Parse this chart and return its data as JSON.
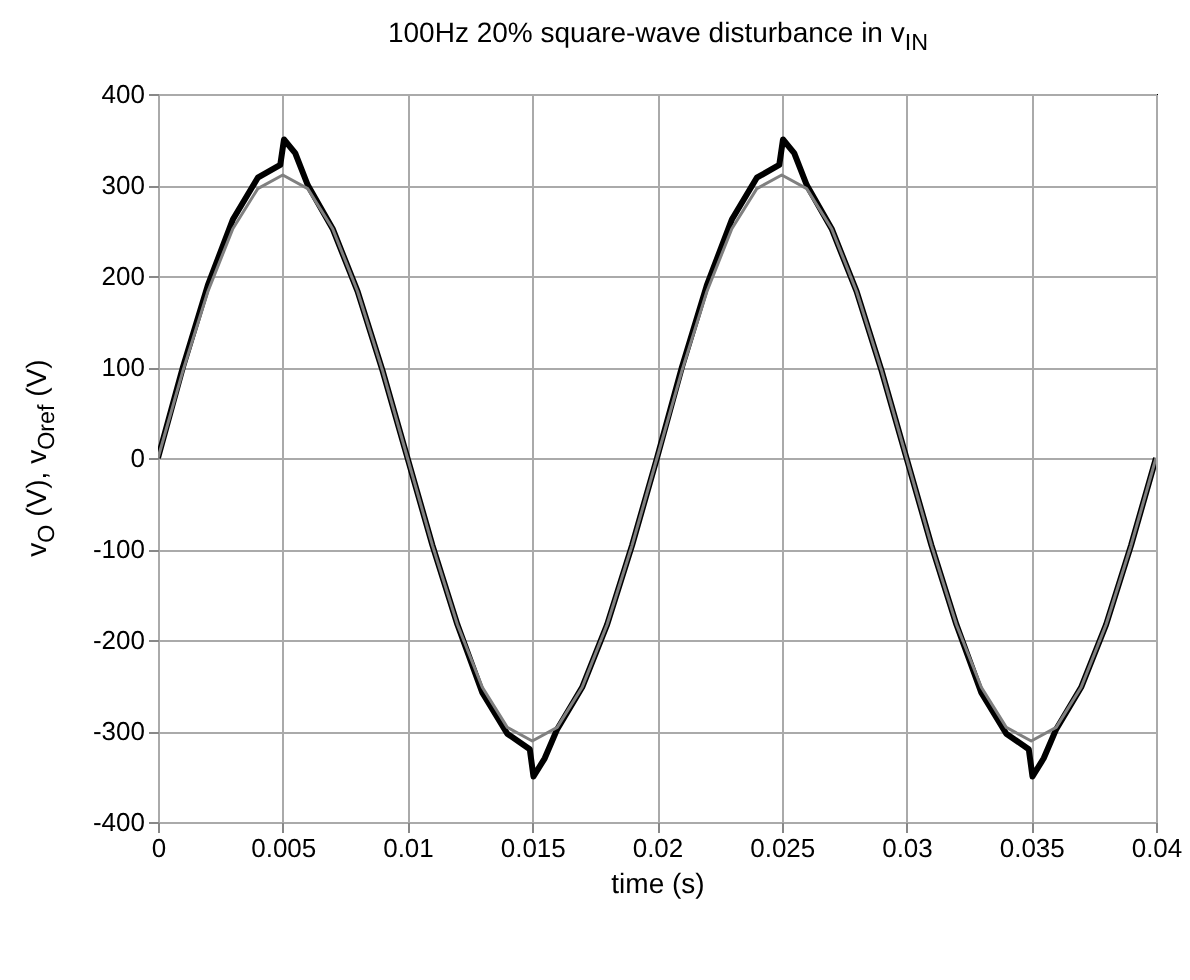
{
  "chart_data": {
    "type": "line",
    "title": "100Hz 20% square-wave disturbance in v$_{IN}$",
    "xlabel": "time (s)",
    "ylabel": "v$_{O}$ (V), v$_{Oref}$ (V)",
    "xlim": [
      0,
      0.04
    ],
    "xticks": [
      0,
      0.005,
      0.01,
      0.015,
      0.02,
      0.025,
      0.03,
      0.035,
      0.04
    ],
    "ylim": [
      -400,
      400
    ],
    "yticks": [
      -400,
      -300,
      -200,
      -100,
      0,
      100,
      200,
      300,
      400
    ],
    "grid": true,
    "series": [
      {
        "color": "#000000",
        "x": [
          0,
          0.001,
          0.002,
          0.003,
          0.004,
          0.0049,
          0.00505,
          0.0055,
          0.006,
          0.007,
          0.008,
          0.009,
          0.01,
          0.011,
          0.012,
          0.013,
          0.014,
          0.0149,
          0.01505,
          0.0155,
          0.016,
          0.017,
          0.018,
          0.019,
          0.02,
          0.021,
          0.022,
          0.023,
          0.024,
          0.0249,
          0.02505,
          0.0255,
          0.026,
          0.027,
          0.028,
          0.029,
          0.03,
          0.031,
          0.032,
          0.033,
          0.034,
          0.0349,
          0.03505,
          0.0355,
          0.036,
          0.037,
          0.038,
          0.039,
          0.04
        ],
        "values": [
          0,
          100,
          190,
          262,
          308,
          322,
          350,
          335,
          300,
          252,
          183,
          96,
          0,
          -96,
          -183,
          -258,
          -303,
          -320,
          -350,
          -330,
          -298,
          -252,
          -183,
          -96,
          0,
          100,
          190,
          262,
          308,
          322,
          350,
          335,
          300,
          252,
          183,
          96,
          0,
          -96,
          -183,
          -258,
          -303,
          -320,
          -350,
          -330,
          -298,
          -252,
          -183,
          -96,
          0
        ]
      },
      {
        "color": "#808080",
        "x": [
          0,
          0.001,
          0.002,
          0.003,
          0.004,
          0.005,
          0.006,
          0.007,
          0.008,
          0.009,
          0.01,
          0.011,
          0.012,
          0.013,
          0.014,
          0.015,
          0.016,
          0.017,
          0.018,
          0.019,
          0.02,
          0.021,
          0.022,
          0.023,
          0.024,
          0.025,
          0.026,
          0.027,
          0.028,
          0.029,
          0.03,
          0.031,
          0.032,
          0.033,
          0.034,
          0.035,
          0.036,
          0.037,
          0.038,
          0.039,
          0.04
        ],
        "values": [
          0,
          96,
          183,
          252,
          296,
          311,
          296,
          252,
          183,
          96,
          0,
          -96,
          -183,
          -252,
          -296,
          -311,
          -296,
          -252,
          -183,
          -96,
          0,
          96,
          183,
          252,
          296,
          311,
          296,
          252,
          183,
          96,
          0,
          -96,
          -183,
          -252,
          -296,
          -311,
          -296,
          -252,
          -183,
          -96,
          0
        ]
      }
    ]
  }
}
